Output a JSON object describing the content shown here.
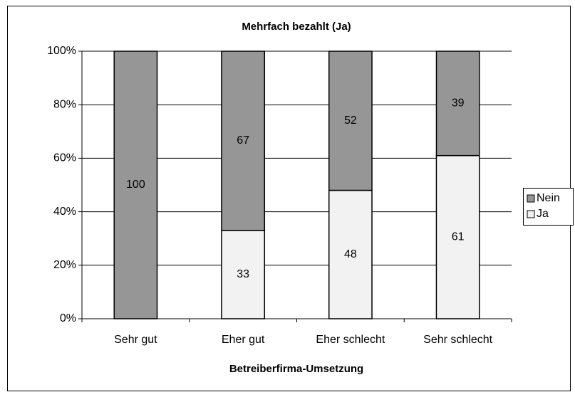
{
  "chart_data": {
    "type": "stacked_bar_100",
    "title": "Mehrfach bezahlt (Ja)",
    "x_label": "Betreiberfirma-Umsetzung",
    "categories": [
      "Sehr gut",
      "Eher gut",
      "Eher schlecht",
      "Sehr schlecht"
    ],
    "series": [
      {
        "name": "Ja",
        "color": "#f2f2f2",
        "values": [
          0,
          33,
          48,
          61
        ]
      },
      {
        "name": "Nein",
        "color": "#969696",
        "values": [
          100,
          67,
          52,
          39
        ]
      }
    ],
    "ylim": [
      0,
      100
    ],
    "yticks": [
      {
        "value": 0,
        "label": "0%"
      },
      {
        "value": 20,
        "label": "20%"
      },
      {
        "value": 40,
        "label": "40%"
      },
      {
        "value": 60,
        "label": "60%"
      },
      {
        "value": 80,
        "label": "80%"
      },
      {
        "value": 100,
        "label": "100%"
      }
    ],
    "grid": true,
    "legend": "right"
  }
}
